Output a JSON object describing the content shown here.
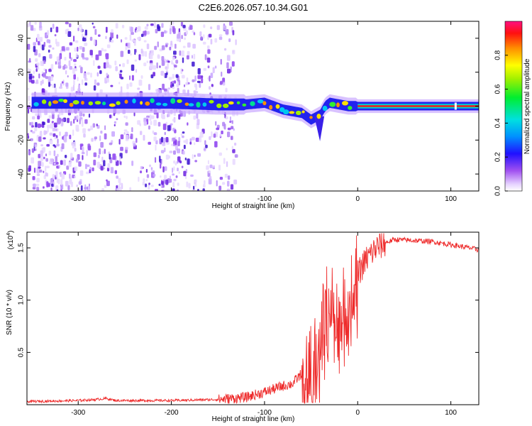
{
  "title": "C2E6.2026.057.10.34.G01",
  "chart_data": [
    {
      "type": "heatmap",
      "xlabel": "Height of straight line (km)",
      "ylabel": "Frequency (Hz)",
      "xlim": [
        -355,
        130
      ],
      "ylim": [
        -50,
        50
      ],
      "xticks": [
        -300,
        -200,
        -100,
        0,
        100
      ],
      "yticks": [
        -40,
        -20,
        0,
        20,
        40
      ],
      "xtick_labels": [
        "-300",
        "-200",
        "-100",
        "0",
        "100"
      ],
      "ytick_labels": [
        "-40",
        "-20",
        "0",
        "20",
        "40"
      ],
      "colorbar": {
        "label": "Normalized spectral amplitude",
        "range": [
          0,
          1
        ],
        "ticks": [
          0.0,
          0.2,
          0.4,
          0.6,
          0.8
        ],
        "tick_labels": [
          "0.0",
          "0.2",
          "0.4",
          "0.6",
          "0.8"
        ]
      },
      "ridge": {
        "x": [
          -350,
          -300,
          -250,
          -200,
          -150,
          -120,
          -100,
          -80,
          -60,
          -50,
          -40,
          -35,
          -30,
          -20,
          -10,
          0,
          50,
          100,
          130
        ],
        "y": [
          2,
          2,
          2,
          2,
          1,
          1,
          2,
          -2,
          -4,
          -8,
          -5,
          0,
          2,
          1,
          0,
          0,
          0,
          0,
          0
        ]
      },
      "noise_region": [
        -355,
        -130
      ]
    },
    {
      "type": "line",
      "xlabel": "Height of straight line (km)",
      "ylabel": "SNR (10 * v/v)",
      "scale_label": "(x10",
      "scale_exp": "4",
      "xlim": [
        -355,
        130
      ],
      "ylim": [
        0,
        1.65
      ],
      "xticks": [
        -300,
        -200,
        -100,
        0,
        100
      ],
      "yticks": [
        0.5,
        1.0,
        1.5
      ],
      "xtick_labels": [
        "-300",
        "-200",
        "-100",
        "0",
        "100"
      ],
      "ytick_labels": [
        "0.5",
        "1.0",
        "1.5"
      ],
      "series": [
        {
          "name": "SNR",
          "color": "#ee2a2a",
          "x": [
            -355,
            -300,
            -280,
            -270,
            -260,
            -200,
            -150,
            -120,
            -100,
            -80,
            -70,
            -60,
            -50,
            -45,
            -40,
            -35,
            -30,
            -25,
            -20,
            -10,
            0,
            10,
            20,
            30,
            40,
            60,
            80,
            100,
            120,
            130
          ],
          "y": [
            0.03,
            0.04,
            0.05,
            0.06,
            0.04,
            0.04,
            0.05,
            0.07,
            0.12,
            0.18,
            0.2,
            0.3,
            0.5,
            0.4,
            0.7,
            0.85,
            1.05,
            0.95,
            0.8,
            1.0,
            1.25,
            1.4,
            1.5,
            1.55,
            1.58,
            1.57,
            1.56,
            1.53,
            1.5,
            1.48
          ]
        }
      ]
    }
  ]
}
